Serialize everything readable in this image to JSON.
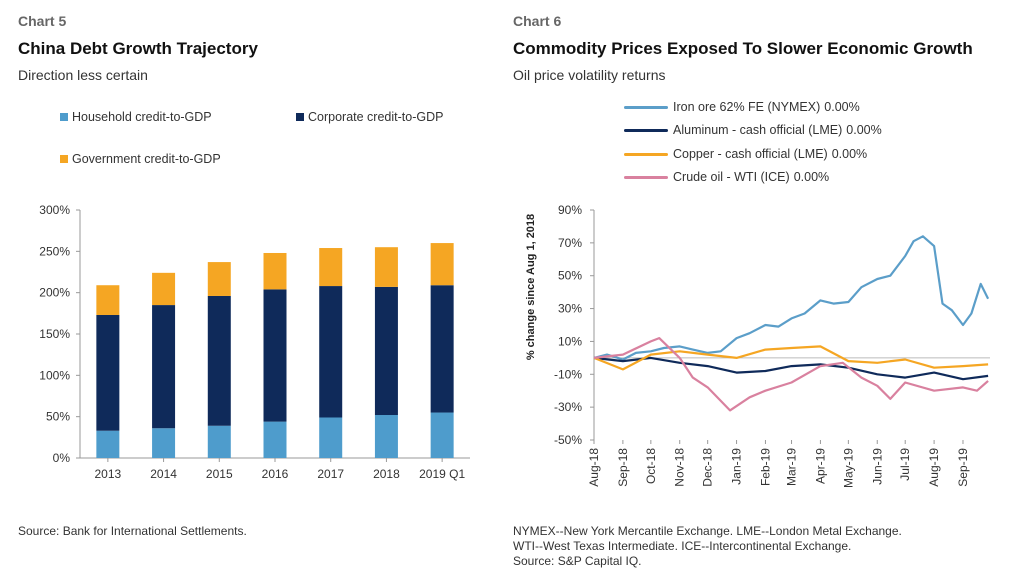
{
  "left": {
    "chart_label": "Chart 5",
    "title": "China Debt Growth Trajectory",
    "subtitle": "Direction less certain",
    "source": "Source: Bank for International Settlements."
  },
  "right": {
    "chart_label": "Chart 6",
    "title": "Commodity Prices Exposed To Slower Economic Growth",
    "subtitle": "Oil price volatility returns",
    "source_lines": [
      "NYMEX--New York Mercantile Exchange. LME--London Metal Exchange.",
      "WTI--West Texas Intermediate. ICE--Intercontinental Exchange.",
      "Source: S&P Capital IQ."
    ]
  },
  "chart_data": [
    {
      "type": "bar",
      "stacked": true,
      "categories": [
        "2013",
        "2014",
        "2015",
        "2016",
        "2017",
        "2018",
        "2019 Q1"
      ],
      "series": [
        {
          "name": "Household credit-to-GDP",
          "color": "#4e9ccc",
          "values": [
            33,
            36,
            39,
            44,
            49,
            52,
            55
          ]
        },
        {
          "name": "Corporate credit-to-GDP",
          "color": "#0f2a5a",
          "values": [
            140,
            149,
            157,
            160,
            159,
            155,
            154
          ]
        },
        {
          "name": "Government credit-to-GDP",
          "color": "#f5a623",
          "values": [
            36,
            39,
            41,
            44,
            46,
            48,
            51
          ]
        }
      ],
      "ylim": [
        0,
        300
      ],
      "yticks": [
        "0%",
        "50%",
        "100%",
        "150%",
        "200%",
        "250%",
        "300%"
      ],
      "grid": false,
      "legend": "top"
    },
    {
      "type": "line",
      "ylabel": "% change since Aug 1, 2018",
      "ylim": [
        -50,
        90
      ],
      "yticks": [
        "-50%",
        "-30%",
        "-10%",
        "10%",
        "30%",
        "50%",
        "70%",
        "90%"
      ],
      "x_range": [
        "2018-08-01",
        "2019-09-30"
      ],
      "xticks": [
        "Aug-18",
        "Sep-18",
        "Oct-18",
        "Nov-18",
        "Dec-18",
        "Jan-19",
        "Feb-19",
        "Mar-19",
        "Apr-19",
        "May-19",
        "Jun-19",
        "Jul-19",
        "Aug-19",
        "Sep-19"
      ],
      "reference_line": 0,
      "grid": false,
      "legend": "top-left",
      "series": [
        {
          "name": "Iron ore 62% FE (NYMEX)",
          "value_label": "0.00%",
          "color": "#5b9ec9",
          "x": [
            "2018-08-01",
            "2018-08-15",
            "2018-09-01",
            "2018-09-15",
            "2018-10-01",
            "2018-10-15",
            "2018-11-01",
            "2018-11-15",
            "2018-12-01",
            "2018-12-15",
            "2019-01-01",
            "2019-01-15",
            "2019-02-01",
            "2019-02-15",
            "2019-03-01",
            "2019-03-15",
            "2019-04-01",
            "2019-04-15",
            "2019-05-01",
            "2019-05-15",
            "2019-06-01",
            "2019-06-15",
            "2019-07-01",
            "2019-07-10",
            "2019-07-20",
            "2019-08-01",
            "2019-08-10",
            "2019-08-20",
            "2019-09-01",
            "2019-09-10",
            "2019-09-20",
            "2019-09-28"
          ],
          "values": [
            0,
            2,
            -1,
            3,
            4,
            6,
            7,
            5,
            3,
            4,
            12,
            15,
            20,
            19,
            24,
            27,
            35,
            33,
            34,
            43,
            48,
            50,
            62,
            71,
            74,
            68,
            33,
            29,
            20,
            27,
            45,
            36
          ]
        },
        {
          "name": "Aluminum - cash official (LME)",
          "value_label": "0.00%",
          "color": "#0f2a5a",
          "x": [
            "2018-08-01",
            "2018-09-01",
            "2018-10-01",
            "2018-11-01",
            "2018-12-01",
            "2019-01-01",
            "2019-02-01",
            "2019-03-01",
            "2019-04-01",
            "2019-05-01",
            "2019-06-01",
            "2019-07-01",
            "2019-08-01",
            "2019-09-01",
            "2019-09-28"
          ],
          "values": [
            0,
            -2,
            0,
            -3,
            -5,
            -9,
            -8,
            -5,
            -4,
            -6,
            -10,
            -12,
            -9,
            -13,
            -11
          ]
        },
        {
          "name": "Copper - cash official (LME)",
          "value_label": "0.00%",
          "color": "#f5a623",
          "x": [
            "2018-08-01",
            "2018-09-01",
            "2018-10-01",
            "2018-11-01",
            "2018-12-01",
            "2019-01-01",
            "2019-02-01",
            "2019-03-01",
            "2019-04-01",
            "2019-05-01",
            "2019-06-01",
            "2019-07-01",
            "2019-08-01",
            "2019-09-01",
            "2019-09-28"
          ],
          "values": [
            0,
            -7,
            2,
            4,
            2,
            0,
            5,
            6,
            7,
            -2,
            -3,
            -1,
            -6,
            -5,
            -4
          ]
        },
        {
          "name": "Crude oil - WTI (ICE)",
          "value_label": "0.00%",
          "color": "#d9819f",
          "x": [
            "2018-08-01",
            "2018-09-01",
            "2018-10-01",
            "2018-10-10",
            "2018-11-01",
            "2018-11-15",
            "2018-12-01",
            "2018-12-25",
            "2019-01-15",
            "2019-02-01",
            "2019-03-01",
            "2019-04-01",
            "2019-04-25",
            "2019-05-15",
            "2019-06-01",
            "2019-06-15",
            "2019-07-01",
            "2019-08-01",
            "2019-09-01",
            "2019-09-16",
            "2019-09-28"
          ],
          "values": [
            0,
            2,
            10,
            12,
            0,
            -12,
            -18,
            -32,
            -24,
            -20,
            -15,
            -5,
            -3,
            -12,
            -17,
            -25,
            -15,
            -20,
            -18,
            -20,
            -14
          ]
        }
      ]
    }
  ]
}
